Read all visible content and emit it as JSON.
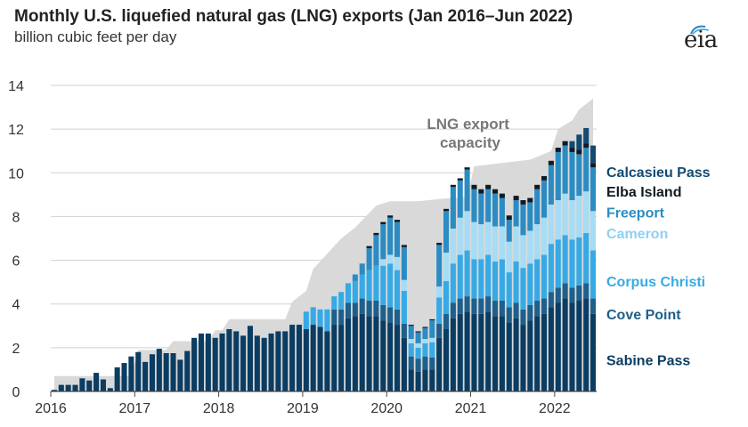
{
  "header": {
    "title": "Monthly U.S. liquefied natural gas (LNG) exports (Jan 2016–Jun 2022)",
    "subtitle": "billion cubic feet per day",
    "logo": "eia"
  },
  "chart_data": {
    "type": "bar",
    "stacked": true,
    "title": "Monthly U.S. liquefied natural gas (LNG) exports (Jan 2016–Jun 2022)",
    "ylabel": "billion cubic feet per day",
    "xlabel": "",
    "ylim": [
      0,
      14
    ],
    "yticks": [
      0,
      2,
      4,
      6,
      8,
      10,
      12,
      14
    ],
    "xticks": [
      "2016",
      "2017",
      "2018",
      "2019",
      "2020",
      "2021",
      "2022"
    ],
    "grid": "horizontal",
    "months_start": "2016-01",
    "month_count": 78,
    "capacity_label_lines": [
      "LNG export",
      "capacity"
    ],
    "capacity_points": [
      [
        0,
        0.7
      ],
      [
        11,
        0.7
      ],
      [
        12,
        1.9
      ],
      [
        16,
        1.9
      ],
      [
        17,
        2.3
      ],
      [
        22,
        2.3
      ],
      [
        23,
        2.8
      ],
      [
        24,
        2.8
      ],
      [
        25,
        3.3
      ],
      [
        33,
        3.3
      ],
      [
        34,
        4.1
      ],
      [
        36,
        4.6
      ],
      [
        37,
        5.6
      ],
      [
        39,
        6.3
      ],
      [
        41,
        7.0
      ],
      [
        43,
        7.5
      ],
      [
        46,
        8.5
      ],
      [
        48,
        8.7
      ],
      [
        52,
        8.7
      ],
      [
        55,
        8.8
      ],
      [
        59,
        8.9
      ],
      [
        60,
        10.3
      ],
      [
        68,
        10.6
      ],
      [
        71,
        11.0
      ],
      [
        72,
        12.0
      ],
      [
        74,
        12.4
      ],
      [
        75,
        12.9
      ],
      [
        77,
        13.4
      ]
    ],
    "series": [
      {
        "name": "Sabine Pass",
        "color": "#0b3d62",
        "values": [
          0.07,
          0.3,
          0.3,
          0.3,
          0.6,
          0.5,
          0.85,
          0.55,
          0.15,
          1.1,
          1.3,
          1.6,
          1.8,
          1.35,
          1.7,
          1.95,
          1.75,
          1.75,
          1.45,
          1.85,
          2.45,
          2.65,
          2.65,
          2.45,
          2.65,
          2.85,
          2.75,
          2.55,
          3.0,
          2.55,
          2.45,
          2.65,
          2.75,
          2.75,
          3.05,
          3.05,
          2.85,
          3.05,
          2.95,
          2.75,
          3.05,
          3.05,
          3.35,
          3.45,
          3.55,
          3.45,
          3.45,
          3.25,
          3.15,
          3.05,
          2.45,
          1.0,
          0.9,
          1.0,
          1.0,
          2.45,
          2.85,
          3.35,
          3.55,
          3.65,
          3.55,
          3.55,
          3.65,
          3.45,
          3.45,
          3.15,
          3.35,
          3.05,
          3.25,
          3.45,
          3.55,
          3.85,
          4.05,
          4.25,
          4.05,
          4.15,
          4.25,
          3.55
        ]
      },
      {
        "name": "Cove Point",
        "color": "#1f5f8b",
        "values": [
          0,
          0,
          0,
          0,
          0,
          0,
          0,
          0,
          0,
          0,
          0,
          0,
          0,
          0,
          0,
          0,
          0,
          0,
          0,
          0,
          0,
          0,
          0,
          0,
          0,
          0,
          0,
          0,
          0,
          0,
          0,
          0,
          0,
          0,
          0,
          0,
          0,
          0,
          0,
          0,
          0.7,
          0.7,
          0.7,
          0.6,
          0.7,
          0.7,
          0.7,
          0.7,
          0.7,
          0.7,
          0.65,
          0.6,
          0.6,
          0.6,
          0.55,
          0.65,
          0.7,
          0.7,
          0.7,
          0.7,
          0.7,
          0.7,
          0.7,
          0.7,
          0.7,
          0.7,
          0.7,
          0.7,
          0.7,
          0.7,
          0.7,
          0.7,
          0.7,
          0.7,
          0.7,
          0.7,
          0.7,
          0.7
        ]
      },
      {
        "name": "Corpus Christi",
        "color": "#36aae6",
        "values": [
          0,
          0,
          0,
          0,
          0,
          0,
          0,
          0,
          0,
          0,
          0,
          0,
          0,
          0,
          0,
          0,
          0,
          0,
          0,
          0,
          0,
          0,
          0,
          0,
          0,
          0,
          0,
          0,
          0,
          0,
          0,
          0,
          0,
          0,
          0,
          0,
          0.8,
          0.8,
          0.8,
          1.0,
          0.6,
          0.8,
          0.9,
          1.0,
          1.1,
          1.4,
          1.6,
          1.8,
          2.0,
          1.8,
          1.5,
          0.6,
          0.5,
          0.6,
          0.7,
          1.2,
          1.5,
          1.8,
          2.0,
          2.1,
          1.8,
          1.8,
          1.9,
          1.8,
          1.9,
          1.6,
          1.9,
          1.9,
          1.9,
          1.9,
          2.0,
          2.2,
          2.2,
          2.2,
          2.2,
          2.2,
          2.3,
          2.2
        ]
      },
      {
        "name": "Cameron",
        "color": "#a6dcf5",
        "values": [
          0,
          0,
          0,
          0,
          0,
          0,
          0,
          0,
          0,
          0,
          0,
          0,
          0,
          0,
          0,
          0,
          0,
          0,
          0,
          0,
          0,
          0,
          0,
          0,
          0,
          0,
          0,
          0,
          0,
          0,
          0,
          0,
          0,
          0,
          0,
          0,
          0,
          0,
          0,
          0,
          0,
          0,
          0,
          0,
          0,
          0,
          0,
          0.3,
          0.4,
          0.6,
          0.5,
          0.2,
          0.2,
          0.2,
          0.2,
          0.5,
          1.3,
          1.6,
          1.7,
          1.8,
          1.7,
          1.6,
          1.5,
          1.6,
          1.5,
          1.4,
          1.6,
          1.5,
          1.5,
          1.6,
          1.7,
          1.8,
          1.8,
          1.9,
          1.8,
          1.9,
          1.9,
          1.8
        ]
      },
      {
        "name": "Freeport",
        "color": "#2b8cc4",
        "values": [
          0,
          0,
          0,
          0,
          0,
          0,
          0,
          0,
          0,
          0,
          0,
          0,
          0,
          0,
          0,
          0,
          0,
          0,
          0,
          0,
          0,
          0,
          0,
          0,
          0,
          0,
          0,
          0,
          0,
          0,
          0,
          0,
          0,
          0,
          0,
          0,
          0,
          0,
          0,
          0,
          0,
          0,
          0,
          0.3,
          0.5,
          1.0,
          1.4,
          1.6,
          1.7,
          1.6,
          1.5,
          0.6,
          0.5,
          0.5,
          0.8,
          1.9,
          1.9,
          1.9,
          1.7,
          1.9,
          1.5,
          1.4,
          1.5,
          1.5,
          1.3,
          1.0,
          1.2,
          1.4,
          1.3,
          1.6,
          1.7,
          1.8,
          2.2,
          2.2,
          2.2,
          1.9,
          2.0,
          2.0
        ]
      },
      {
        "name": "Elba Island",
        "color": "#111a22",
        "values": [
          0,
          0,
          0,
          0,
          0,
          0,
          0,
          0,
          0,
          0,
          0,
          0,
          0,
          0,
          0,
          0,
          0,
          0,
          0,
          0,
          0,
          0,
          0,
          0,
          0,
          0,
          0,
          0,
          0,
          0,
          0,
          0,
          0,
          0,
          0,
          0,
          0,
          0,
          0,
          0,
          0,
          0,
          0,
          0,
          0,
          0.1,
          0.1,
          0.1,
          0.1,
          0.1,
          0.1,
          0.05,
          0.05,
          0.05,
          0.05,
          0.1,
          0.1,
          0.1,
          0.1,
          0.1,
          0.2,
          0.2,
          0.2,
          0.2,
          0.2,
          0.2,
          0.2,
          0.2,
          0.2,
          0.2,
          0.2,
          0.2,
          0.2,
          0.2,
          0.2,
          0.2,
          0.2,
          0.2
        ]
      },
      {
        "name": "Calcasieu Pass",
        "color": "#124a72",
        "values": [
          0,
          0,
          0,
          0,
          0,
          0,
          0,
          0,
          0,
          0,
          0,
          0,
          0,
          0,
          0,
          0,
          0,
          0,
          0,
          0,
          0,
          0,
          0,
          0,
          0,
          0,
          0,
          0,
          0,
          0,
          0,
          0,
          0,
          0,
          0,
          0,
          0,
          0,
          0,
          0,
          0,
          0,
          0,
          0,
          0,
          0,
          0,
          0,
          0,
          0,
          0,
          0,
          0,
          0,
          0,
          0,
          0,
          0,
          0,
          0,
          0,
          0,
          0,
          0,
          0,
          0,
          0,
          0,
          0,
          0,
          0,
          0,
          0,
          0,
          0.3,
          0.7,
          0.7,
          0.8
        ]
      }
    ],
    "legend": [
      {
        "label": "Calcasieu Pass",
        "color": "#124a72"
      },
      {
        "label": "Elba Island",
        "color": "#111a22"
      },
      {
        "label": "Freeport",
        "color": "#2b8cc4"
      },
      {
        "label": "Cameron",
        "color": "#a6dcf5"
      },
      {
        "label": "Corpus Christi",
        "color": "#36aae6"
      },
      {
        "label": "Cove Point",
        "color": "#1f5f8b"
      },
      {
        "label": "Sabine Pass",
        "color": "#0b3d62"
      }
    ],
    "legend_value_positions": [
      10.05,
      9.15,
      8.2,
      7.25,
      5.05,
      3.55,
      1.45
    ]
  }
}
